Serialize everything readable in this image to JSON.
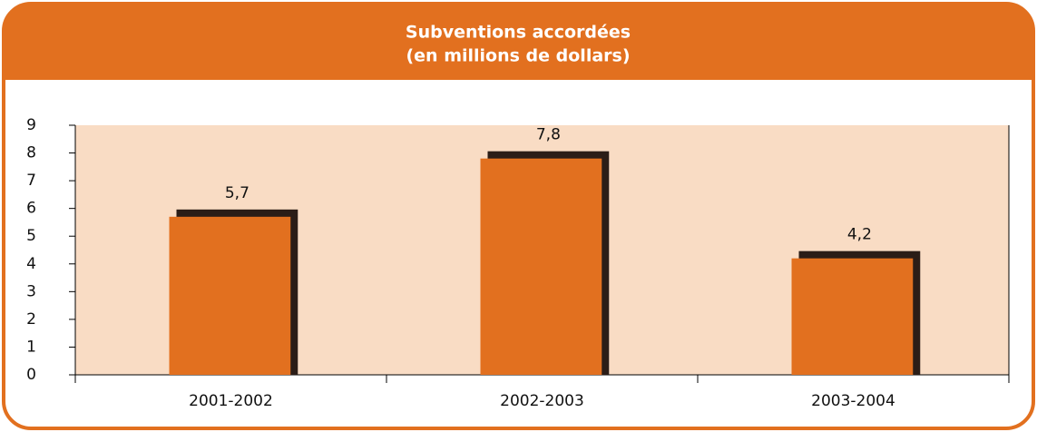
{
  "chart_data": {
    "type": "bar",
    "title": "Subventions accordées",
    "subtitle": "(en millions de dollars)",
    "categories": [
      "2001-2002",
      "2002-2003",
      "2003-2004"
    ],
    "values": [
      5.7,
      7.8,
      4.2
    ],
    "value_labels": [
      "5,7",
      "7,8",
      "4,2"
    ],
    "color": "#e2701f",
    "shadow_color": "#2b1d17",
    "plot_background": "#f9dcc4",
    "ylim": [
      0,
      9
    ],
    "yticks": [
      0,
      1,
      2,
      3,
      4,
      5,
      6,
      7,
      8,
      9
    ],
    "grid": false
  }
}
